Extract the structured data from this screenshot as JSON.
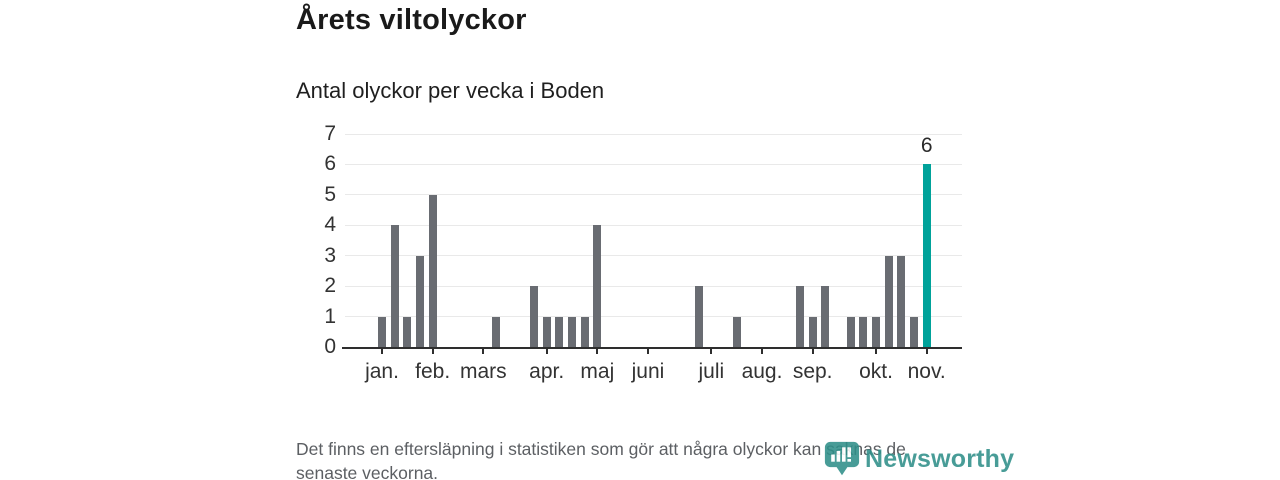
{
  "title": "Årets viltolyckor",
  "subtitle": "Antal olyckor per vecka i Boden",
  "footer": {
    "text": "Det finns en eftersläpning i statistiken som gör att några olyckor kan saknas de senaste veckorna.",
    "lines": [
      "Det finns en eftersläpning i statistiken som gör att några olyckor kan saknas de",
      "senaste veckorna."
    ]
  },
  "branding": {
    "name": "Newsworthy",
    "icon": "newsworthy-pin-icon",
    "color": "#2f8f89"
  },
  "colors": {
    "background": "#ffffff",
    "bar": "#696c72",
    "highlight": "#00a29a",
    "grid": "#e9e9e9",
    "axis": "#2e2e2e",
    "tick_label": "#333333",
    "title_text": "#1a1a1a",
    "muted_text": "#5c5f63"
  },
  "chart_data": {
    "type": "bar",
    "title": "Årets viltolyckor",
    "subtitle": "Antal olyckor per vecka i Boden",
    "xlabel": "",
    "ylabel": "",
    "x_unit": "vecka",
    "x": [
      1,
      2,
      3,
      4,
      5,
      6,
      7,
      8,
      9,
      10,
      11,
      12,
      13,
      14,
      15,
      16,
      17,
      18,
      19,
      20,
      21,
      22,
      23,
      24,
      25,
      26,
      27,
      28,
      29,
      30,
      31,
      32,
      33,
      34,
      35,
      36,
      37,
      38,
      39,
      40,
      41,
      42,
      43,
      44
    ],
    "values": [
      1,
      4,
      1,
      3,
      5,
      0,
      0,
      0,
      0,
      1,
      0,
      0,
      2,
      1,
      1,
      1,
      1,
      4,
      0,
      0,
      0,
      0,
      0,
      0,
      0,
      2,
      0,
      0,
      1,
      0,
      0,
      0,
      0,
      2,
      1,
      2,
      0,
      1,
      1,
      1,
      3,
      3,
      1,
      6
    ],
    "highlight": {
      "week": 44,
      "value": 6,
      "label": "6"
    },
    "y_ticks": [
      0,
      1,
      2,
      3,
      4,
      5,
      6,
      7
    ],
    "ylim": [
      0,
      7
    ],
    "grid": "horizontal",
    "legend": "none",
    "month_ticks": [
      {
        "label": "jan.",
        "week": 1
      },
      {
        "label": "feb.",
        "week": 5
      },
      {
        "label": "mars",
        "week": 9
      },
      {
        "label": "apr.",
        "week": 14
      },
      {
        "label": "maj",
        "week": 18
      },
      {
        "label": "juni",
        "week": 22
      },
      {
        "label": "juli",
        "week": 27
      },
      {
        "label": "aug.",
        "week": 31
      },
      {
        "label": "sep.",
        "week": 35
      },
      {
        "label": "okt.",
        "week": 40
      },
      {
        "label": "nov.",
        "week": 44
      }
    ]
  }
}
